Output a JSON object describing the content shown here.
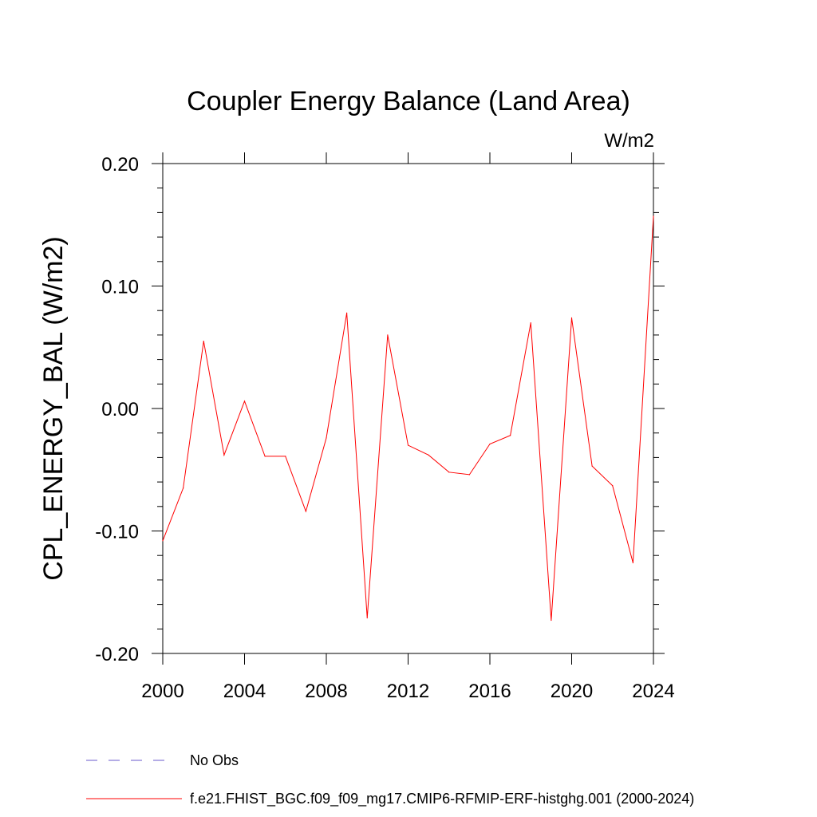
{
  "chart_data": {
    "type": "line",
    "title": "Coupler Energy Balance (Land Area)",
    "units_label": "W/m2",
    "ylabel": "CPL_ENERGY_BAL  (W/m2)",
    "xlabel": "",
    "xlim": [
      2000,
      2024
    ],
    "ylim": [
      -0.2,
      0.2
    ],
    "x_ticks": [
      "2000",
      "2004",
      "2008",
      "2012",
      "2016",
      "2020",
      "2024"
    ],
    "x_tick_values": [
      2000,
      2004,
      2008,
      2012,
      2016,
      2020,
      2024
    ],
    "y_ticks": [
      "-0.20",
      "-0.10",
      "0.00",
      "0.10",
      "0.20"
    ],
    "y_tick_values": [
      -0.2,
      -0.1,
      0.0,
      0.1,
      0.2
    ],
    "series": [
      {
        "name": "f.e21.FHIST_BGC.f09_f09_mg17.CMIP6-RFMIP-ERF-histghg.001 (2000-2024)",
        "color": "#ff0000",
        "x": [
          2000,
          2001,
          2002,
          2003,
          2004,
          2005,
          2006,
          2007,
          2008,
          2009,
          2010,
          2011,
          2012,
          2013,
          2014,
          2015,
          2016,
          2017,
          2018,
          2019,
          2020,
          2021,
          2022,
          2023,
          2024
        ],
        "values": [
          -0.108,
          -0.065,
          0.055,
          -0.038,
          0.006,
          -0.039,
          -0.039,
          -0.084,
          -0.024,
          0.078,
          -0.171,
          0.06,
          -0.03,
          -0.038,
          -0.052,
          -0.054,
          -0.029,
          -0.022,
          0.07,
          -0.173,
          0.074,
          -0.047,
          -0.063,
          -0.126,
          0.157
        ]
      }
    ],
    "legend": [
      {
        "label": "No Obs",
        "style": "dashed",
        "color": "#6a5acd"
      },
      {
        "label": "f.e21.FHIST_BGC.f09_f09_mg17.CMIP6-RFMIP-ERF-histghg.001 (2000-2024)",
        "style": "solid",
        "color": "#ff0000"
      }
    ],
    "legend_position": "bottom"
  }
}
